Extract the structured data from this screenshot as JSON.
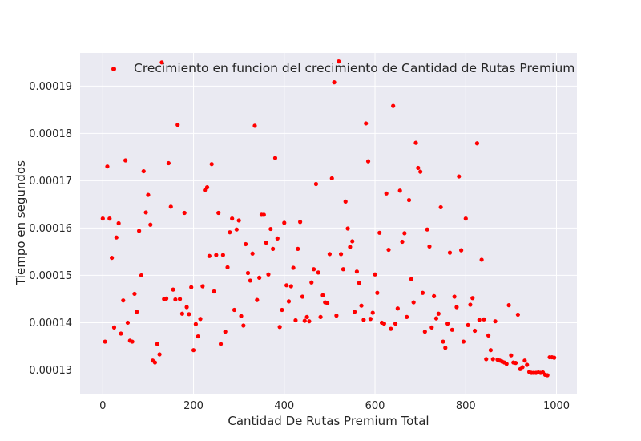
{
  "chart_data": {
    "type": "scatter",
    "title": "",
    "xlabel": "Cantidad De Rutas Premium Total",
    "ylabel": "Tiempo en segundos",
    "xlim": [
      -50,
      1045
    ],
    "ylim": [
      0.000125,
      0.000197
    ],
    "x_ticks": [
      0,
      200,
      400,
      600,
      800,
      1000
    ],
    "x_tick_labels": [
      "0",
      "200",
      "400",
      "600",
      "800",
      "1000"
    ],
    "y_ticks": [
      0.00013,
      0.00014,
      0.00015,
      0.00016,
      0.00017,
      0.00018,
      0.00019
    ],
    "y_tick_labels": [
      "0.00013",
      "0.00014",
      "0.00015",
      "0.00016",
      "0.00017",
      "0.00018",
      "0.00019"
    ],
    "grid": true,
    "legend_position": "top-center",
    "background_color": "#eaeaf2",
    "grid_color": "#ffffff",
    "series": [
      {
        "name": "Crecimiento en funcion del crecimiento de Cantidad de Rutas Premium",
        "color": "#ff0000",
        "marker": "circle",
        "points": [
          [
            0,
            0.000162
          ],
          [
            5,
            0.000136
          ],
          [
            10,
            0.000173
          ],
          [
            15,
            0.000162
          ],
          [
            20,
            0.0001537
          ],
          [
            25,
            0.000139
          ],
          [
            30,
            0.000158
          ],
          [
            35,
            0.000161
          ],
          [
            40,
            0.0001377
          ],
          [
            45,
            0.0001447
          ],
          [
            50,
            0.0001743
          ],
          [
            55,
            0.00014
          ],
          [
            60,
            0.0001362
          ],
          [
            65,
            0.000136
          ],
          [
            70,
            0.0001461
          ],
          [
            75,
            0.0001423
          ],
          [
            80,
            0.0001594
          ],
          [
            85,
            0.00015
          ],
          [
            90,
            0.000172
          ],
          [
            95,
            0.0001633
          ],
          [
            100,
            0.000167
          ],
          [
            105,
            0.0001607
          ],
          [
            110,
            0.000132
          ],
          [
            115,
            0.0001316
          ],
          [
            120,
            0.0001355
          ],
          [
            125,
            0.0001333
          ],
          [
            130,
            0.000195
          ],
          [
            135,
            0.000145
          ],
          [
            140,
            0.0001451
          ],
          [
            145,
            0.0001737
          ],
          [
            150,
            0.0001645
          ],
          [
            155,
            0.000147
          ],
          [
            160,
            0.0001449
          ],
          [
            165,
            0.0001818
          ],
          [
            170,
            0.000145
          ],
          [
            175,
            0.0001419
          ],
          [
            180,
            0.0001632
          ],
          [
            185,
            0.0001433
          ],
          [
            190,
            0.0001418
          ],
          [
            195,
            0.0001475
          ],
          [
            200,
            0.0001342
          ],
          [
            205,
            0.0001397
          ],
          [
            210,
            0.0001371
          ],
          [
            215,
            0.0001408
          ],
          [
            220,
            0.0001477
          ],
          [
            225,
            0.000168
          ],
          [
            230,
            0.0001686
          ],
          [
            235,
            0.0001541
          ],
          [
            240,
            0.0001735
          ],
          [
            245,
            0.0001466
          ],
          [
            250,
            0.0001543
          ],
          [
            255,
            0.0001632
          ],
          [
            260,
            0.0001355
          ],
          [
            265,
            0.0001543
          ],
          [
            270,
            0.0001381
          ],
          [
            275,
            0.0001517
          ],
          [
            280,
            0.0001591
          ],
          [
            285,
            0.000162
          ],
          [
            290,
            0.0001427
          ],
          [
            295,
            0.0001597
          ],
          [
            300,
            0.0001616
          ],
          [
            305,
            0.0001414
          ],
          [
            310,
            0.0001394
          ],
          [
            315,
            0.0001566
          ],
          [
            320,
            0.0001505
          ],
          [
            325,
            0.0001489
          ],
          [
            330,
            0.0001546
          ],
          [
            335,
            0.0001816
          ],
          [
            340,
            0.0001448
          ],
          [
            345,
            0.0001495
          ],
          [
            350,
            0.0001628
          ],
          [
            355,
            0.0001628
          ],
          [
            360,
            0.0001569
          ],
          [
            365,
            0.0001502
          ],
          [
            370,
            0.0001598
          ],
          [
            375,
            0.0001556
          ],
          [
            380,
            0.0001748
          ],
          [
            385,
            0.0001578
          ],
          [
            390,
            0.0001391
          ],
          [
            395,
            0.0001427
          ],
          [
            400,
            0.0001611
          ],
          [
            405,
            0.0001479
          ],
          [
            410,
            0.0001445
          ],
          [
            415,
            0.0001477
          ],
          [
            420,
            0.0001516
          ],
          [
            425,
            0.0001405
          ],
          [
            430,
            0.0001556
          ],
          [
            435,
            0.0001613
          ],
          [
            440,
            0.0001455
          ],
          [
            445,
            0.0001404
          ],
          [
            450,
            0.0001412
          ],
          [
            455,
            0.0001403
          ],
          [
            460,
            0.0001485
          ],
          [
            465,
            0.0001513
          ],
          [
            470,
            0.0001693
          ],
          [
            475,
            0.0001506
          ],
          [
            480,
            0.0001412
          ],
          [
            485,
            0.0001458
          ],
          [
            490,
            0.0001443
          ],
          [
            495,
            0.0001441
          ],
          [
            500,
            0.0001545
          ],
          [
            505,
            0.0001705
          ],
          [
            510,
            0.0001908
          ],
          [
            515,
            0.0001415
          ],
          [
            520,
            0.0001952
          ],
          [
            525,
            0.0001545
          ],
          [
            530,
            0.0001513
          ],
          [
            535,
            0.0001656
          ],
          [
            540,
            0.0001599
          ],
          [
            545,
            0.000156
          ],
          [
            550,
            0.0001572
          ],
          [
            555,
            0.0001423
          ],
          [
            560,
            0.0001508
          ],
          [
            565,
            0.0001484
          ],
          [
            570,
            0.0001436
          ],
          [
            575,
            0.0001406
          ],
          [
            580,
            0.0001821
          ],
          [
            585,
            0.0001741
          ],
          [
            590,
            0.0001408
          ],
          [
            595,
            0.0001421
          ],
          [
            600,
            0.0001502
          ],
          [
            605,
            0.0001463
          ],
          [
            610,
            0.000159
          ],
          [
            615,
            0.00014
          ],
          [
            620,
            0.0001398
          ],
          [
            625,
            0.0001673
          ],
          [
            630,
            0.0001554
          ],
          [
            635,
            0.0001387
          ],
          [
            640,
            0.0001858
          ],
          [
            645,
            0.0001398
          ],
          [
            650,
            0.000143
          ],
          [
            655,
            0.0001679
          ],
          [
            660,
            0.0001571
          ],
          [
            665,
            0.0001589
          ],
          [
            670,
            0.0001412
          ],
          [
            675,
            0.0001659
          ],
          [
            680,
            0.0001492
          ],
          [
            685,
            0.0001443
          ],
          [
            690,
            0.000178
          ],
          [
            695,
            0.0001727
          ],
          [
            700,
            0.0001719
          ],
          [
            705,
            0.0001463
          ],
          [
            710,
            0.0001381
          ],
          [
            715,
            0.0001597
          ],
          [
            720,
            0.0001561
          ],
          [
            725,
            0.000139
          ],
          [
            730,
            0.0001456
          ],
          [
            735,
            0.0001409
          ],
          [
            740,
            0.0001419
          ],
          [
            745,
            0.0001644
          ],
          [
            750,
            0.000136
          ],
          [
            755,
            0.0001347
          ],
          [
            760,
            0.0001398
          ],
          [
            765,
            0.0001548
          ],
          [
            770,
            0.0001385
          ],
          [
            775,
            0.0001455
          ],
          [
            780,
            0.0001433
          ],
          [
            785,
            0.0001709
          ],
          [
            790,
            0.0001553
          ],
          [
            795,
            0.000136
          ],
          [
            800,
            0.000162
          ],
          [
            805,
            0.0001395
          ],
          [
            810,
            0.0001438
          ],
          [
            815,
            0.0001452
          ],
          [
            820,
            0.0001383
          ],
          [
            825,
            0.0001779
          ],
          [
            830,
            0.0001406
          ],
          [
            835,
            0.0001533
          ],
          [
            840,
            0.0001407
          ],
          [
            845,
            0.0001323
          ],
          [
            850,
            0.0001373
          ],
          [
            855,
            0.0001342
          ],
          [
            860,
            0.0001323
          ],
          [
            865,
            0.0001403
          ],
          [
            870,
            0.0001322
          ],
          [
            875,
            0.000132
          ],
          [
            880,
            0.0001318
          ],
          [
            885,
            0.0001316
          ],
          [
            890,
            0.0001313
          ],
          [
            895,
            0.0001437
          ],
          [
            900,
            0.0001331
          ],
          [
            905,
            0.0001316
          ],
          [
            910,
            0.0001315
          ],
          [
            915,
            0.0001417
          ],
          [
            920,
            0.0001302
          ],
          [
            925,
            0.0001306
          ],
          [
            930,
            0.000132
          ],
          [
            935,
            0.0001311
          ],
          [
            940,
            0.0001296
          ],
          [
            945,
            0.0001294
          ],
          [
            950,
            0.0001294
          ],
          [
            955,
            0.0001294
          ],
          [
            960,
            0.0001295
          ],
          [
            965,
            0.0001294
          ],
          [
            970,
            0.0001295
          ],
          [
            975,
            0.000129
          ],
          [
            980,
            0.0001289
          ],
          [
            985,
            0.0001327
          ],
          [
            990,
            0.0001327
          ],
          [
            995,
            0.0001326
          ]
        ]
      }
    ]
  }
}
